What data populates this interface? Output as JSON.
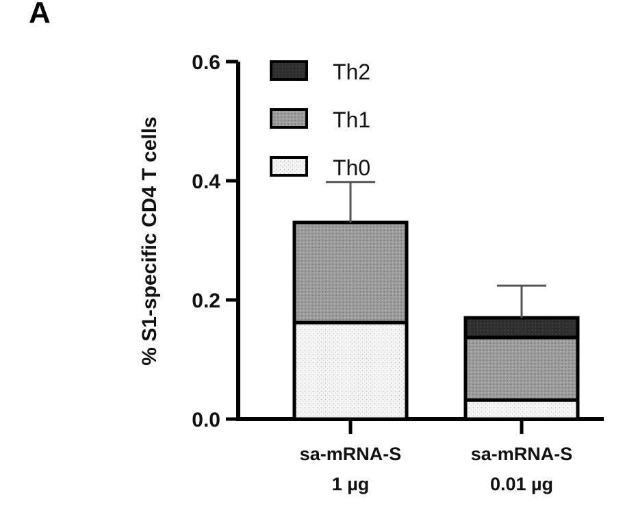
{
  "panel_label": "A",
  "chart_data": {
    "type": "bar",
    "stacked": true,
    "categories": [
      [
        "sa-mRNA-S",
        "1 µg"
      ],
      [
        "sa-mRNA-S",
        "0.01 µg"
      ]
    ],
    "series": [
      {
        "name": "Th0",
        "values": [
          0.162,
          0.032
        ],
        "color": "#f2f2f2",
        "pattern": "light-speckle"
      },
      {
        "name": "Th1",
        "values": [
          0.168,
          0.105
        ],
        "color": "#9a9a9a",
        "pattern": "grey-speckle"
      },
      {
        "name": "Th2",
        "values": [
          0.0,
          0.033
        ],
        "color": "#2e2e2e",
        "pattern": "dark"
      }
    ],
    "error_bars_upper": [
      0.398,
      0.224
    ],
    "ylabel": "% S1-specific CD4 T cells",
    "xlabel": "",
    "ylim": [
      0,
      0.6
    ],
    "yticks": [
      "0.0",
      "0.2",
      "0.4",
      "0.6"
    ],
    "legend_position": "top-left",
    "grid": false
  }
}
